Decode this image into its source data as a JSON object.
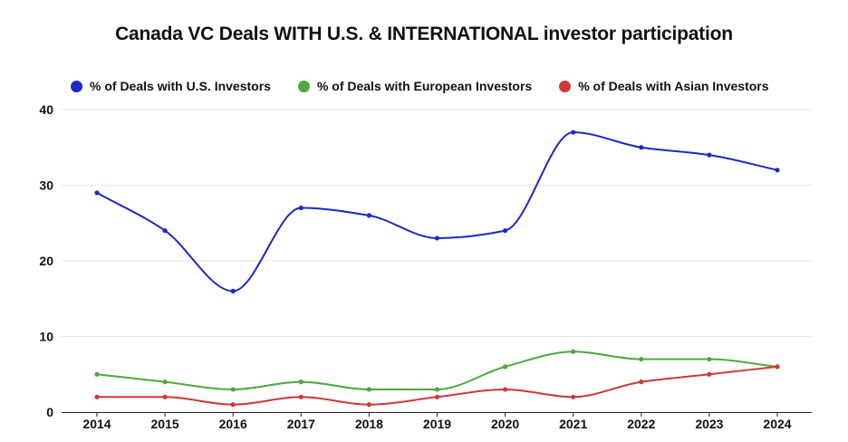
{
  "chart_data": {
    "type": "line",
    "title": "Canada VC Deals WITH U.S. & INTERNATIONAL investor participation",
    "xlabel": "",
    "ylabel": "",
    "categories": [
      "2014",
      "2015",
      "2016",
      "2017",
      "2018",
      "2019",
      "2020",
      "2021",
      "2022",
      "2023",
      "2024"
    ],
    "y_ticks": [
      "0",
      "10",
      "20",
      "30",
      "40"
    ],
    "ylim": [
      0,
      40
    ],
    "grid": "horizontal",
    "legend_position": "top",
    "series": [
      {
        "name": "% of Deals with U.S. Investors",
        "color": "#1a2bc4",
        "values": [
          29,
          24,
          16,
          27,
          26,
          23,
          24,
          37,
          35,
          34,
          32
        ]
      },
      {
        "name": "% of Deals with European Investors",
        "color": "#4fa83f",
        "values": [
          5,
          4,
          3,
          4,
          3,
          3,
          6,
          8,
          7,
          7,
          6
        ]
      },
      {
        "name": "% of Deals with Asian Investors",
        "color": "#cf3838",
        "values": [
          2,
          2,
          1,
          2,
          1,
          2,
          3,
          2,
          4,
          5,
          6
        ]
      }
    ]
  }
}
